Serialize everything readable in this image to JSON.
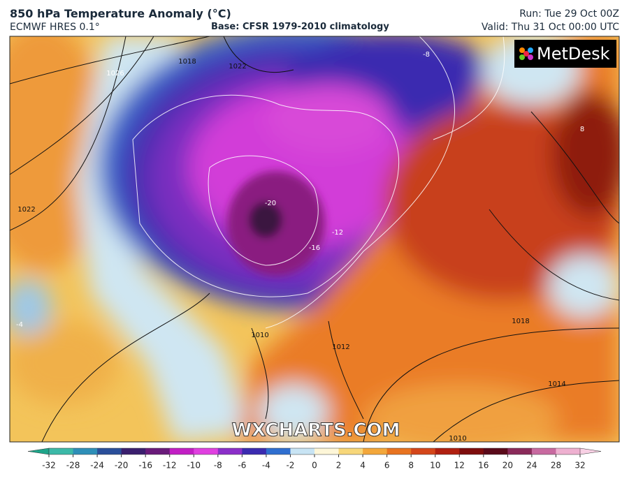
{
  "header": {
    "title": "850 hPa Temperature Anomaly (°C)",
    "model": "ECMWF HRES 0.1°",
    "base": "Base: CFSR 1979-2010 climatology",
    "run": "Run: Tue 29 Oct 00Z",
    "valid": "Valid: Thu 31 Oct 00:00 UTC"
  },
  "map": {
    "brand": "MetDesk",
    "watermark": "WXCHARTS.COM",
    "contour_labels": [
      "1018",
      "1022",
      "1026",
      "1022",
      "-8",
      "8",
      "-20",
      "-12",
      "-16",
      "1018",
      "1014",
      "1010",
      "1012",
      "1010",
      "-4"
    ]
  },
  "colorbar": {
    "ticks": [
      -32,
      -28,
      -24,
      -20,
      -16,
      -12,
      -10,
      -8,
      -6,
      -4,
      -2,
      0,
      2,
      4,
      6,
      8,
      10,
      12,
      16,
      20,
      24,
      28,
      32
    ],
    "colors": [
      "#3cb9a8",
      "#2e8fb8",
      "#2a4f9a",
      "#3b1f6e",
      "#6a1b7a",
      "#c21fc4",
      "#e040e0",
      "#8b2fc9",
      "#3b2bb0",
      "#2f6fd0",
      "#c8e4f4",
      "#fdf6d8",
      "#f7d77a",
      "#f3a73b",
      "#e87320",
      "#d4461a",
      "#b02010",
      "#7e0d0d",
      "#5a0a1a",
      "#8a2a5a",
      "#c86aa0",
      "#eeb0d0"
    ],
    "extend_colors": [
      "#1fa58a",
      "#f8d0e4"
    ]
  }
}
